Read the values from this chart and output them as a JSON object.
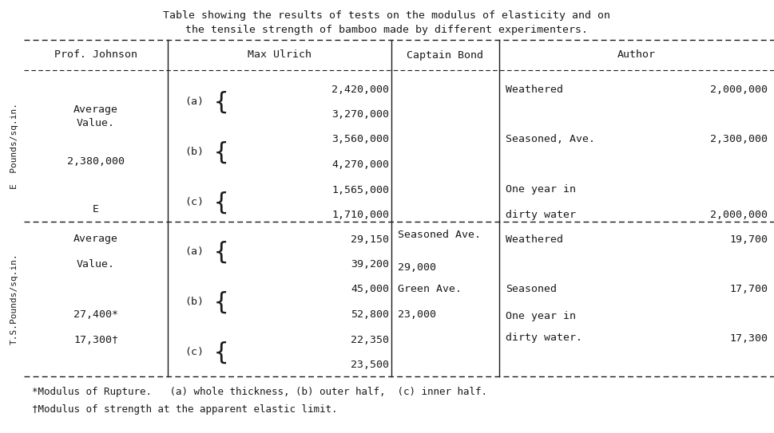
{
  "title_line1": "Table showing the results of tests on the modulus of elasticity and on",
  "title_line2": "the tensile strength of bamboo made by different experimenters.",
  "bg_color": "#ffffff",
  "text_color": "#1a1a1a",
  "font_family": "monospace",
  "col_headers": [
    "Prof. Johnson",
    "Max Ulrich",
    "Captain Bond",
    "Author"
  ],
  "footnote1": "*Modulus of Rupture.   (a) whole thickness, (b) outer half,  (c) inner half.",
  "footnote2": "†Modulus of strength at the apparent elastic limit.",
  "top_rot_label": "E  Pounds/sq.in.",
  "bot_rot_label": "T.S.Pounds/sq.in.",
  "top_section_mu": {
    "labels": [
      "(a)",
      "(b)",
      "(c)"
    ],
    "values": [
      [
        "2,420,000",
        "3,270,000"
      ],
      [
        "3,560,000",
        "4,270,000"
      ],
      [
        "1,565,000",
        "1,710,000"
      ]
    ]
  },
  "bot_section_mu": {
    "labels": [
      "(a)",
      "(b)",
      "(c)"
    ],
    "values": [
      [
        "29,150",
        "39,200"
      ],
      [
        "45,000",
        "52,800"
      ],
      [
        "22,350",
        "23,500"
      ]
    ]
  },
  "top_pj": [
    "Average",
    "Value.",
    "2,380,000",
    "E"
  ],
  "bot_pj": [
    "Average",
    "Value.",
    "27,400*",
    "17,300†"
  ],
  "top_author": [
    [
      "Weathered",
      "2,000,000"
    ],
    [
      "Seasoned, Ave.",
      "2,300,000"
    ],
    [
      "One year in",
      ""
    ],
    [
      "dirty water",
      "2,000,000"
    ]
  ],
  "bot_cb": [
    [
      "Seasoned Ave.",
      ""
    ],
    [
      "29,000",
      ""
    ],
    [
      "Green Ave.",
      ""
    ],
    [
      "23,000",
      ""
    ]
  ],
  "bot_author": [
    [
      "Weathered",
      "19,700"
    ],
    [
      "Seasoned",
      "17,700"
    ],
    [
      "One year in",
      ""
    ],
    [
      "dirty water.",
      "17,300"
    ]
  ]
}
